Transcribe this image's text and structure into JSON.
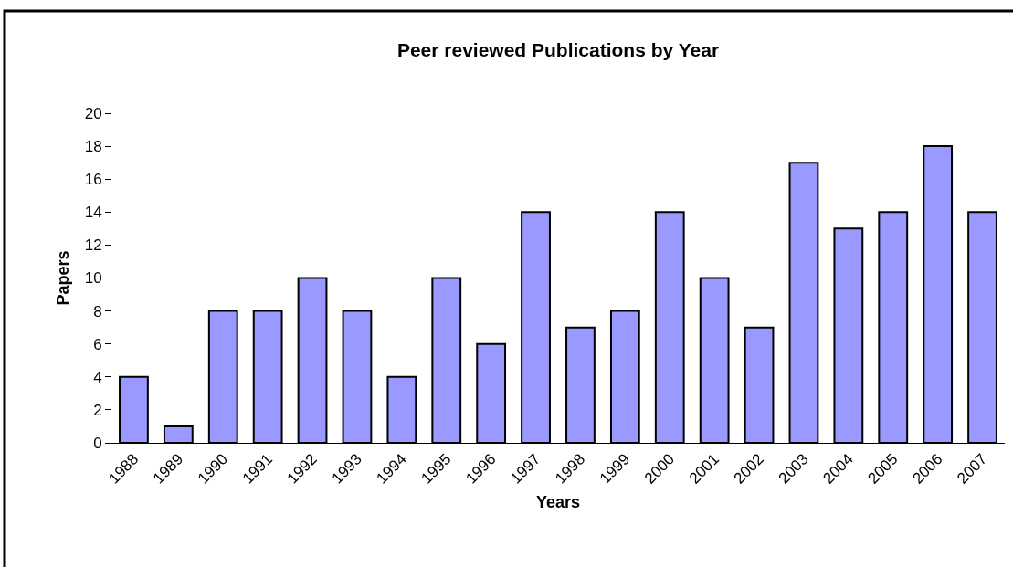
{
  "chart_data": {
    "type": "bar",
    "title": "Peer reviewed Publications by Year",
    "xlabel": "Years",
    "ylabel": "Papers",
    "categories": [
      "1988",
      "1989",
      "1990",
      "1991",
      "1992",
      "1993",
      "1994",
      "1995",
      "1996",
      "1997",
      "1998",
      "1999",
      "2000",
      "2001",
      "2002",
      "2003",
      "2004",
      "2005",
      "2006",
      "2007"
    ],
    "values": [
      4,
      1,
      8,
      8,
      10,
      8,
      4,
      10,
      6,
      14,
      7,
      8,
      14,
      10,
      7,
      17,
      13,
      14,
      18,
      14
    ],
    "color": "#9999ff",
    "ylim": [
      0,
      20
    ],
    "yticks": [
      0,
      2,
      4,
      6,
      8,
      10,
      12,
      14,
      16,
      18,
      20
    ],
    "grid": false
  }
}
